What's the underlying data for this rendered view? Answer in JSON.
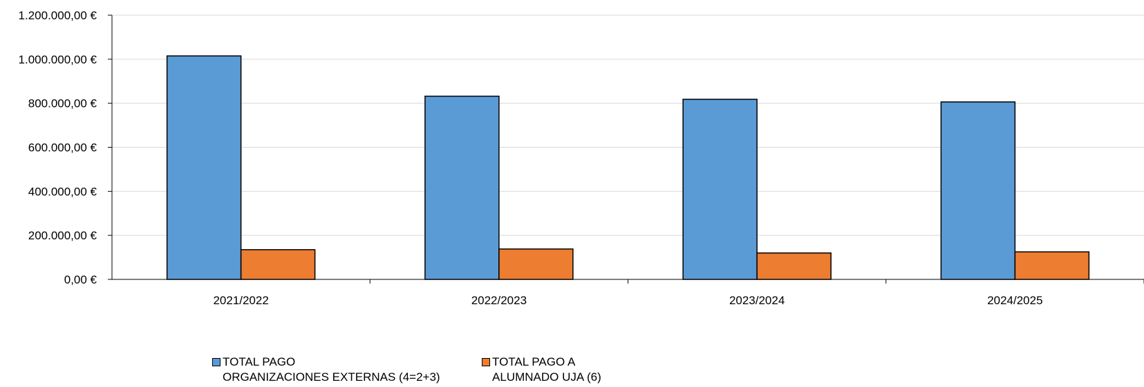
{
  "chart_data": {
    "type": "bar",
    "categories": [
      "2021/2022",
      "2022/2023",
      "2023/2024",
      "2024/2025"
    ],
    "series": [
      {
        "name": "TOTAL PAGO\nORGANIZACIONES EXTERNAS (4=2+3)",
        "color": "#5b9bd5",
        "values": [
          1015000,
          832000,
          818000,
          806000
        ]
      },
      {
        "name": "TOTAL PAGO A\nALUMNADO UJA (6)",
        "color": "#ed7d31",
        "values": [
          135000,
          138000,
          120000,
          125000
        ]
      }
    ],
    "y_ticks": [
      "0,00 €",
      "200.000,00 €",
      "400.000,00 €",
      "600.000,00 €",
      "800.000,00 €",
      "1.000.000,00 €",
      "1.200.000,00 €"
    ],
    "ylim": [
      0,
      1200000
    ],
    "title": "",
    "xlabel": "",
    "ylabel": "",
    "grid": true,
    "legend_position": "bottom"
  }
}
